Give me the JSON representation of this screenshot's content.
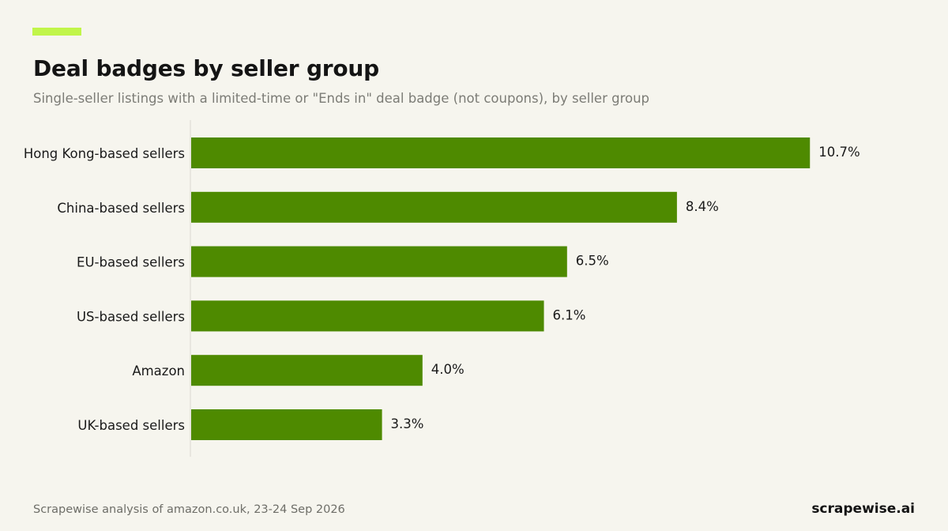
{
  "header": {
    "title": "Deal badges by seller group",
    "subtitle": "Single-seller listings with a limited-time or \"Ends in\" deal badge (not coupons), by seller group"
  },
  "footer": {
    "source": "Scrapewise analysis of amazon.co.uk, 23-24 Sep 2026",
    "brand": "scrapewise.ai"
  },
  "colors": {
    "accent": "#c1f54a",
    "bar": "#4e8a00",
    "axis": "#d9d8d0",
    "label_text": "#1a1a1a",
    "value_text": "#1a1a1a"
  },
  "chart_data": {
    "type": "bar",
    "orientation": "horizontal",
    "categories": [
      "Hong Kong-based sellers",
      "China-based sellers",
      "EU-based sellers",
      "US-based sellers",
      "Amazon",
      "UK-based sellers"
    ],
    "values": [
      10.7,
      8.4,
      6.5,
      6.1,
      4.0,
      3.3
    ],
    "data_labels": [
      "10.7%",
      "8.4%",
      "6.5%",
      "6.1%",
      "4.0%",
      "3.3%"
    ],
    "title": "Deal badges by seller group",
    "subtitle": "Single-seller listings with a limited-time or \"Ends in\" deal badge (not coupons), by seller group",
    "xlabel": "",
    "ylabel": "",
    "xlim": [
      0,
      11
    ],
    "grid": false,
    "legend": "none"
  }
}
